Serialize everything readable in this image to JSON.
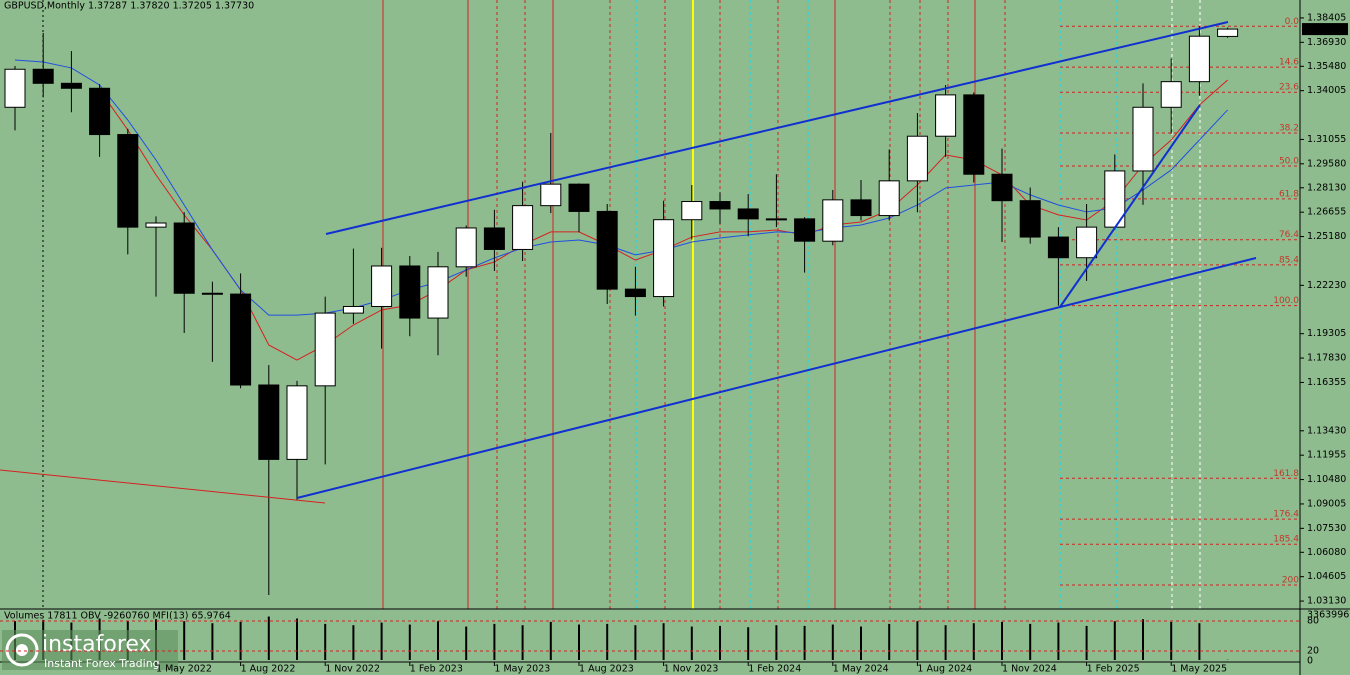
{
  "chart_data": {
    "type": "candlestick",
    "title": "GBPUSD,Monthly  1.37287 1.37820 1.37205 1.37730",
    "categories": [
      null,
      null,
      null,
      null,
      null,
      "1 May 2022",
      null,
      null,
      "1 Aug 2022",
      null,
      null,
      "1 Nov 2022",
      null,
      null,
      "1 Feb 2023",
      null,
      null,
      "1 May 2023",
      null,
      null,
      "1 Aug 2023",
      null,
      null,
      "1 Nov 2023",
      null,
      null,
      "1 Feb 2024",
      null,
      null,
      "1 May 2024",
      null,
      null,
      "1 Aug 2024",
      null,
      null,
      "1 Nov 2024",
      null,
      null,
      "1 Feb 2025",
      null,
      null,
      "1 May 2025",
      null,
      null
    ],
    "open": [
      1.33,
      1.353,
      1.3445,
      1.3415,
      1.3135,
      1.2575,
      1.26,
      1.2175,
      1.217,
      1.162,
      1.117,
      1.1615,
      1.2055,
      1.2095,
      1.234,
      1.2025,
      1.2335,
      1.257,
      1.244,
      1.2705,
      1.2835,
      1.267,
      1.22,
      1.2155,
      1.262,
      1.273,
      1.2685,
      1.2625,
      1.2625,
      1.249,
      1.274,
      1.2645,
      1.2855,
      1.3125,
      1.3375,
      1.2895,
      1.2735,
      1.2515,
      1.239,
      1.2575,
      1.2915,
      1.33,
      1.3455,
      1.37287
    ],
    "high": [
      1.355,
      1.375,
      1.364,
      1.344,
      1.317,
      1.264,
      1.2665,
      1.2245,
      1.2295,
      1.174,
      1.1645,
      1.2155,
      1.2445,
      1.245,
      1.24,
      1.2425,
      1.2585,
      1.268,
      1.285,
      1.3145,
      1.284,
      1.2715,
      1.2335,
      1.2735,
      1.283,
      1.2785,
      1.2775,
      1.2895,
      1.2635,
      1.28,
      1.286,
      1.3045,
      1.3265,
      1.3435,
      1.339,
      1.305,
      1.2815,
      1.2575,
      1.2715,
      1.3015,
      1.3445,
      1.3595,
      1.379,
      1.3782
    ],
    "low": [
      1.316,
      1.336,
      1.327,
      1.3,
      1.241,
      1.2155,
      1.1935,
      1.176,
      1.16,
      1.035,
      1.0925,
      1.114,
      1.199,
      1.184,
      1.1915,
      1.18,
      1.2275,
      1.231,
      1.237,
      1.266,
      1.2545,
      1.211,
      1.204,
      1.2095,
      1.25,
      1.2595,
      1.252,
      1.2575,
      1.23,
      1.2465,
      1.2615,
      1.2615,
      1.2665,
      1.3,
      1.2845,
      1.2485,
      1.2475,
      1.21,
      1.225,
      1.256,
      1.271,
      1.314,
      1.337,
      1.37205
    ],
    "close": [
      1.353,
      1.3445,
      1.3415,
      1.3135,
      1.2575,
      1.26,
      1.2175,
      1.217,
      1.162,
      1.117,
      1.1615,
      1.2055,
      1.2095,
      1.234,
      1.2025,
      1.2335,
      1.257,
      1.244,
      1.2705,
      1.2835,
      1.267,
      1.22,
      1.2155,
      1.262,
      1.273,
      1.2685,
      1.2625,
      1.2625,
      1.249,
      1.274,
      1.2645,
      1.2855,
      1.3125,
      1.3375,
      1.2895,
      1.2735,
      1.2515,
      1.239,
      1.2575,
      1.2915,
      1.33,
      1.3455,
      1.373,
      1.3773
    ],
    "series": [
      {
        "color": "#d62020",
        "values": [
          null,
          null,
          null,
          1.3405,
          1.3163,
          1.2891,
          1.2649,
          1.2437,
          1.2195,
          1.1862,
          1.1771,
          1.1862,
          1.1983,
          1.2074,
          1.2104,
          1.2195,
          1.2316,
          1.2364,
          1.2467,
          1.2546,
          1.2546,
          1.2467,
          1.2376,
          1.2437,
          1.2515,
          1.2546,
          1.2546,
          1.2558,
          1.2528,
          1.2588,
          1.2606,
          1.2679,
          1.283,
          1.3012,
          1.2981,
          1.2891,
          1.2709,
          1.2649,
          1.2618,
          1.2739,
          1.2951,
          1.3102,
          1.3314,
          1.3465
        ]
      },
      {
        "color": "#1f4fe0",
        "values": [
          1.3586,
          1.3574,
          1.3538,
          1.3435,
          1.3223,
          1.2981,
          1.2709,
          1.2437,
          1.2195,
          1.2043,
          1.2043,
          1.2055,
          1.2086,
          1.2134,
          1.2195,
          1.2243,
          1.2316,
          1.2389,
          1.2449,
          1.2485,
          1.2497,
          1.2467,
          1.2407,
          1.2437,
          1.2485,
          1.2509,
          1.2528,
          1.2546,
          1.254,
          1.257,
          1.2588,
          1.263,
          1.2709,
          1.2812,
          1.283,
          1.2848,
          1.277,
          1.2709,
          1.2667,
          1.2691,
          1.28,
          1.2921,
          1.3102,
          1.3284
        ]
      }
    ],
    "ylim": [
      1.0265,
      1.3949
    ],
    "yticks": [
      {
        "value": 1.38405,
        "label": "1.38405"
      },
      {
        "value": 1.3693,
        "label": "1.36930"
      },
      {
        "value": 1.3548,
        "label": "1.35480"
      },
      {
        "value": 1.34005,
        "label": "1.34005"
      },
      {
        "value": 1.31055,
        "label": "1.31055"
      },
      {
        "value": 1.2958,
        "label": "1.29580"
      },
      {
        "value": 1.2813,
        "label": "1.28130"
      },
      {
        "value": 1.26655,
        "label": "1.26655"
      },
      {
        "value": 1.2518,
        "label": "1.25180"
      },
      {
        "value": 1.2223,
        "label": "1.22230"
      },
      {
        "value": 1.19305,
        "label": "1.19305"
      },
      {
        "value": 1.1783,
        "label": "1.17830"
      },
      {
        "value": 1.16355,
        "label": "1.16355"
      },
      {
        "value": 1.1343,
        "label": "1.13430"
      },
      {
        "value": 1.11955,
        "label": "1.11955"
      },
      {
        "value": 1.1048,
        "label": "1.10480"
      },
      {
        "value": 1.09005,
        "label": "1.09005"
      },
      {
        "value": 1.0753,
        "label": "1.07530"
      },
      {
        "value": 1.0608,
        "label": "1.06080"
      },
      {
        "value": 1.04605,
        "label": "1.04605"
      },
      {
        "value": 1.0313,
        "label": "1.03130"
      }
    ],
    "last_price_label": "1.37730",
    "fib_labels": [
      "0.0",
      "14.6",
      "23.6",
      "38.2",
      "50.0",
      "61.8",
      "76.4",
      "85.4",
      "100.0",
      "161.8",
      "176.4",
      "185.4",
      "200"
    ],
    "fib_prices": [
      1.379,
      1.35433,
      1.33912,
      1.31444,
      1.2945,
      1.27456,
      1.24988,
      1.23467,
      1.21,
      1.10556,
      1.08088,
      1.06567,
      1.041
    ],
    "volume_header": "Volumes 17811  OBV -9260760  MFI(13) 65.9764",
    "volumes": [
      2900000,
      3000000,
      2800000,
      3100000,
      2950000,
      3050000,
      2900000,
      2750000,
      2850000,
      3250000,
      3100000,
      2700000,
      2600000,
      2800000,
      2650000,
      2900000,
      2500000,
      2700000,
      2600000,
      2850000,
      2650000,
      2700000,
      2600000,
      2750000,
      2500000,
      2550000,
      2450000,
      2600000,
      2550000,
      2650000,
      2500000,
      2700000,
      2900000,
      2600000,
      2750000,
      2850000,
      2700000,
      2800000,
      2550000,
      2900000,
      3050000,
      2850000,
      2750000,
      17811
    ],
    "vlim": [
      0,
      3363996
    ],
    "vticks": [
      3363996
    ],
    "mfi_lim": [
      0,
      100
    ],
    "mfi_ticks": [
      80,
      20,
      0
    ]
  },
  "watermark": {
    "brand": "instaforex",
    "tagline": "Instant Forex Trading"
  }
}
